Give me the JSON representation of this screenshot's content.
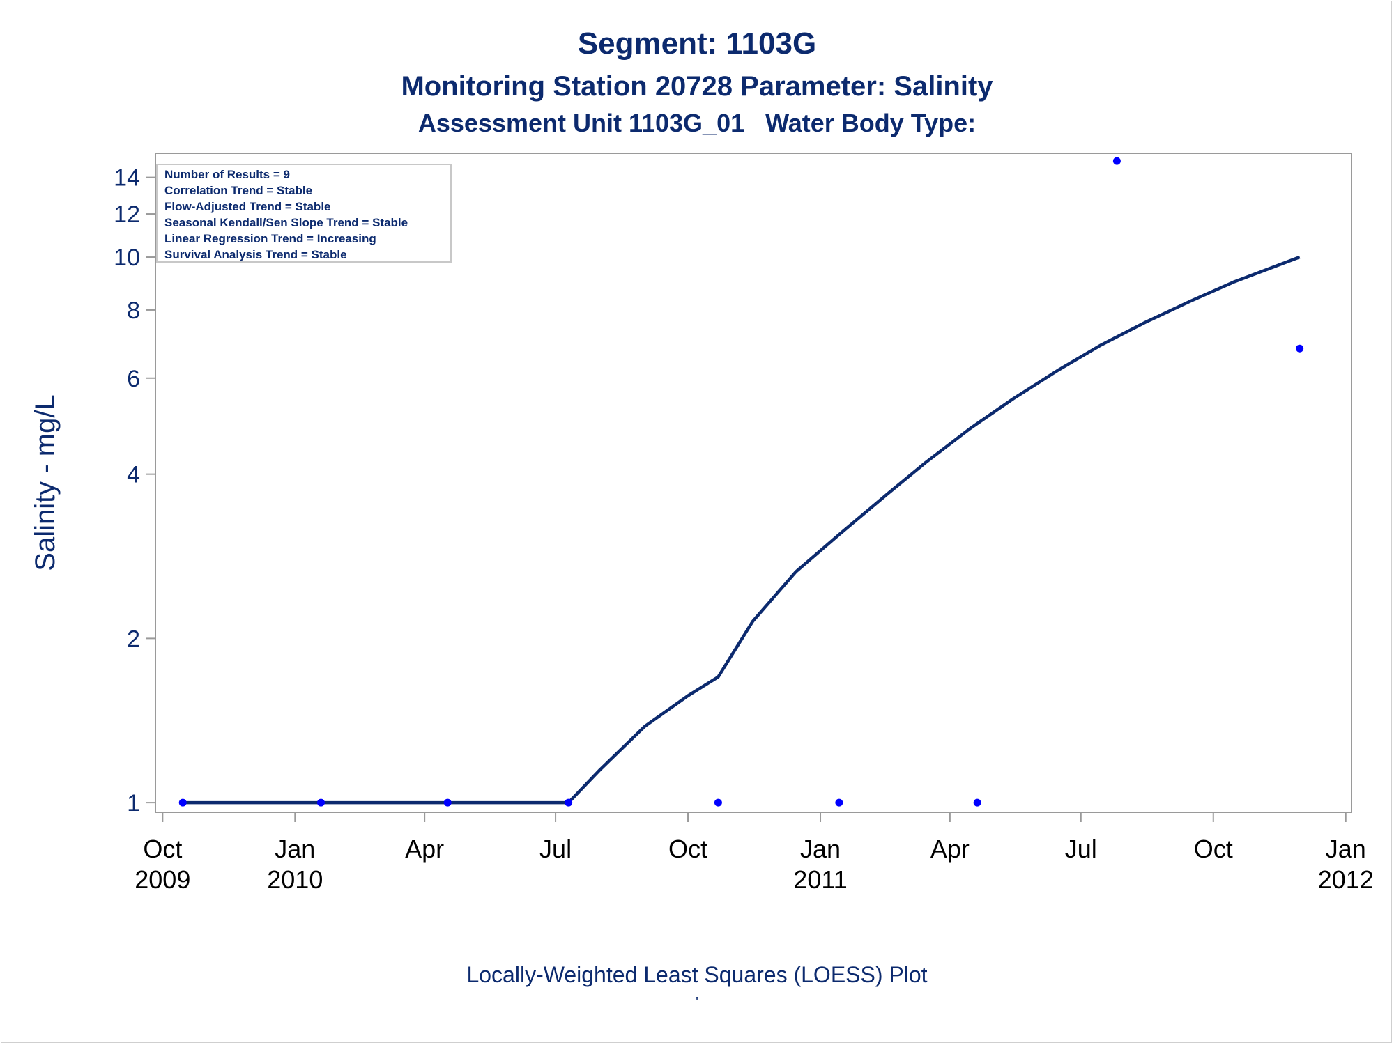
{
  "titles": {
    "line1": "Segment: 1103G",
    "line2": "Monitoring Station 20728 Parameter: Salinity",
    "line3": "Assessment Unit 1103G_01   Water Body Type:"
  },
  "footnote": "Locally-Weighted Least Squares (LOESS) Plot",
  "footnote_mark": "'",
  "legend_box": [
    "Number of Results = 9",
    "Correlation Trend = Stable",
    "Flow-Adjusted Trend = Stable",
    "Seasonal Kendall/Sen Slope Trend = Stable",
    "Linear Regression Trend = Increasing",
    "Survival Analysis Trend = Stable"
  ],
  "colors": {
    "text": "#0c2a6e",
    "line": "#0c2a6e",
    "points": "#0000ff",
    "axis": "#9a9a9a",
    "frame_border": "#c8c8c8"
  },
  "chart_data": {
    "type": "scatter",
    "ylabel": "Salinity - mg/L",
    "y_scale": "log",
    "ylim": [
      0.96,
      15.5
    ],
    "y_ticks": [
      1,
      2,
      4,
      6,
      8,
      10,
      12,
      14
    ],
    "xlim": [
      "2009-09-26",
      "2012-01-05"
    ],
    "x_ticks": [
      {
        "date": "2009-10-01",
        "label": [
          "Oct",
          "2009"
        ]
      },
      {
        "date": "2010-01-01",
        "label": [
          "Jan",
          "2010"
        ]
      },
      {
        "date": "2010-04-01",
        "label": [
          "Apr",
          ""
        ]
      },
      {
        "date": "2010-07-01",
        "label": [
          "Jul",
          ""
        ]
      },
      {
        "date": "2010-10-01",
        "label": [
          "Oct",
          ""
        ]
      },
      {
        "date": "2011-01-01",
        "label": [
          "Jan",
          "2011"
        ]
      },
      {
        "date": "2011-04-01",
        "label": [
          "Apr",
          ""
        ]
      },
      {
        "date": "2011-07-01",
        "label": [
          "Jul",
          ""
        ]
      },
      {
        "date": "2011-10-01",
        "label": [
          "Oct",
          ""
        ]
      },
      {
        "date": "2012-01-01",
        "label": [
          "Jan",
          "2012"
        ]
      }
    ],
    "series": [
      {
        "kind": "points",
        "x": [
          "2009-10-15",
          "2010-01-19",
          "2010-04-17",
          "2010-07-10",
          "2010-10-22",
          "2011-01-14",
          "2011-04-20",
          "2011-07-26",
          "2011-11-30"
        ],
        "y": [
          1,
          1,
          1,
          1,
          1,
          1,
          1,
          15,
          6.8
        ]
      },
      {
        "kind": "line",
        "x": [
          "2009-10-15",
          "2010-01-19",
          "2010-04-17",
          "2010-07-10",
          "2010-08-01",
          "2010-09-01",
          "2010-10-01",
          "2010-10-22",
          "2010-11-15",
          "2010-12-15",
          "2011-01-14",
          "2011-02-15",
          "2011-03-15",
          "2011-04-15",
          "2011-05-15",
          "2011-06-15",
          "2011-07-15",
          "2011-08-15",
          "2011-09-15",
          "2011-10-15",
          "2011-11-30"
        ],
        "y": [
          1,
          1,
          1,
          1,
          1.15,
          1.38,
          1.57,
          1.7,
          2.15,
          2.65,
          3.1,
          3.65,
          4.2,
          4.85,
          5.5,
          6.2,
          6.9,
          7.6,
          8.3,
          9.0,
          10.0
        ]
      }
    ]
  }
}
